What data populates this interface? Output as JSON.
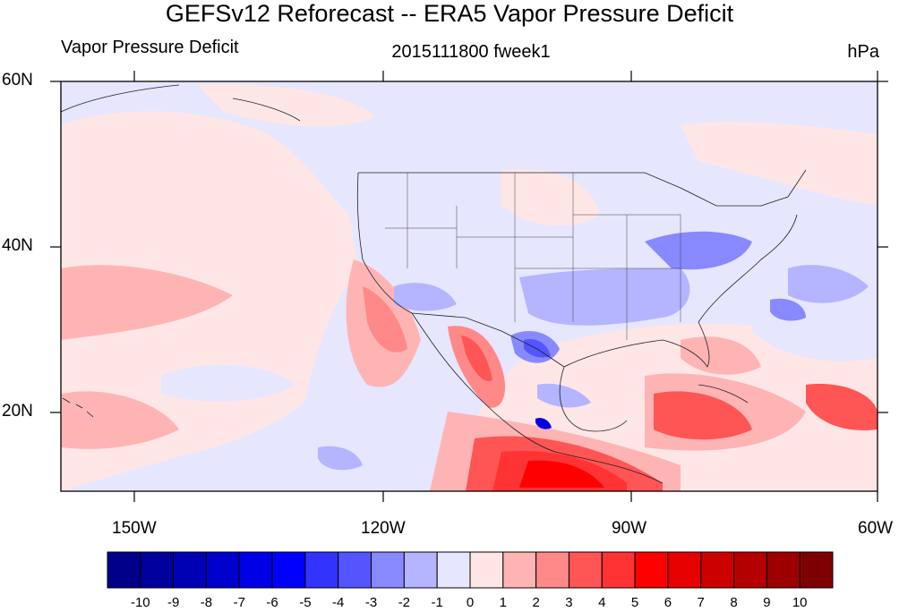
{
  "header": {
    "title": "GEFSv12 Reforecast -- ERA5 Vapor Pressure Deficit",
    "left_label": "Vapor Pressure Deficit",
    "center_label": "2015111800 fweek1",
    "right_label": "hPa"
  },
  "map": {
    "projection": "cylindrical-equidistant",
    "lon_range": [
      -160,
      -60
    ],
    "lat_range": [
      10,
      60
    ],
    "lat_labels": [
      "60N",
      "40N",
      "20N"
    ],
    "lon_labels": [
      "150W",
      "120W",
      "90W",
      "60W"
    ]
  },
  "colorbar": {
    "labels": [
      "-10",
      "-9",
      "-8",
      "-7",
      "-6",
      "-5",
      "-4",
      "-3",
      "-2",
      "-1",
      "0",
      "1",
      "2",
      "3",
      "4",
      "5",
      "6",
      "7",
      "8",
      "9",
      "10"
    ],
    "colors": [
      "#00008b",
      "#00009c",
      "#0000b4",
      "#0000cd",
      "#0000e6",
      "#0000ff",
      "#3333ff",
      "#5555ff",
      "#8888ff",
      "#b4b4ff",
      "#e6e6ff",
      "#ffe6e6",
      "#ffb4b4",
      "#ff8888",
      "#ff5555",
      "#ff3333",
      "#ff0000",
      "#e60000",
      "#cd0000",
      "#b40000",
      "#9c0000",
      "#7f0000"
    ]
  }
}
